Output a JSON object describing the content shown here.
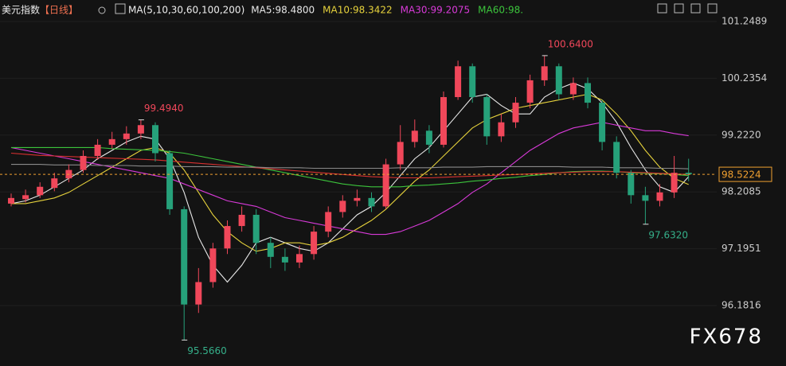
{
  "chart_data": {
    "type": "candlestick",
    "title": "美元指数",
    "period": "【日线】",
    "indicator": "MA(5,10,30,60,100,200)",
    "watermark": "FX678",
    "up_color": "#f0475a",
    "down_color": "#26a17a",
    "open": [
      98.0,
      98.08,
      98.15,
      98.28,
      98.45,
      98.6,
      98.85,
      99.05,
      99.15,
      99.25,
      99.4,
      98.9,
      97.9,
      96.2,
      96.6,
      97.2,
      97.6,
      97.8,
      97.3,
      97.05,
      96.95,
      97.1,
      97.5,
      97.85,
      98.05,
      98.1,
      97.95,
      98.7,
      99.1,
      99.3,
      99.05,
      99.9,
      100.45,
      99.9,
      99.2,
      99.45,
      99.8,
      100.2,
      100.45,
      99.95,
      100.15,
      99.8,
      99.1,
      98.55,
      98.15,
      98.05,
      98.2,
      98.55
    ],
    "high": [
      98.18,
      98.25,
      98.38,
      98.55,
      98.7,
      98.95,
      99.15,
      99.28,
      99.38,
      99.494,
      99.45,
      98.95,
      97.95,
      96.85,
      97.3,
      97.7,
      97.95,
      97.9,
      97.4,
      97.2,
      97.25,
      97.6,
      97.95,
      98.15,
      98.25,
      98.2,
      98.8,
      99.4,
      99.5,
      99.4,
      100.0,
      100.55,
      100.5,
      99.95,
      99.6,
      99.9,
      100.3,
      100.64,
      100.5,
      100.25,
      100.25,
      99.85,
      99.2,
      98.6,
      98.3,
      98.35,
      98.85,
      98.8
    ],
    "low": [
      97.95,
      98.02,
      98.1,
      98.22,
      98.38,
      98.55,
      98.78,
      98.98,
      99.05,
      99.15,
      98.75,
      97.8,
      95.566,
      96.05,
      96.5,
      97.1,
      97.5,
      97.1,
      96.85,
      96.8,
      96.85,
      97.0,
      97.4,
      97.75,
      97.95,
      97.85,
      97.9,
      98.6,
      99.0,
      98.9,
      99.0,
      99.85,
      99.8,
      99.05,
      99.1,
      99.35,
      99.7,
      100.1,
      99.85,
      99.85,
      99.7,
      98.95,
      98.45,
      98.0,
      97.632,
      97.95,
      98.1,
      98.4
    ],
    "close": [
      98.1,
      98.15,
      98.3,
      98.45,
      98.6,
      98.85,
      99.05,
      99.15,
      99.25,
      99.4,
      98.9,
      97.9,
      96.2,
      96.6,
      97.2,
      97.6,
      97.8,
      97.3,
      97.05,
      96.95,
      97.1,
      97.5,
      97.85,
      98.05,
      98.1,
      97.95,
      98.7,
      99.1,
      99.3,
      99.05,
      99.9,
      100.45,
      99.9,
      99.2,
      99.45,
      99.8,
      100.2,
      100.45,
      99.95,
      100.15,
      99.8,
      99.1,
      98.55,
      98.15,
      98.05,
      98.2,
      98.55,
      98.5224
    ],
    "series": [
      {
        "name": "MA5:98.4800",
        "color": "#e8e8e8",
        "values": [
          98.0,
          98.05,
          98.15,
          98.3,
          98.45,
          98.6,
          98.8,
          98.95,
          99.1,
          99.2,
          99.15,
          98.8,
          98.2,
          97.4,
          96.9,
          96.6,
          96.9,
          97.3,
          97.4,
          97.3,
          97.2,
          97.15,
          97.3,
          97.55,
          97.8,
          97.95,
          98.2,
          98.5,
          98.8,
          99.0,
          99.3,
          99.6,
          99.9,
          99.95,
          99.75,
          99.6,
          99.6,
          99.9,
          100.05,
          100.15,
          100.05,
          99.8,
          99.45,
          99.0,
          98.6,
          98.3,
          98.2,
          98.48
        ]
      },
      {
        "name": "MA10:98.3422",
        "color": "#e6d23c",
        "values": [
          98.0,
          98.0,
          98.05,
          98.1,
          98.2,
          98.35,
          98.5,
          98.65,
          98.8,
          98.95,
          99.0,
          98.9,
          98.6,
          98.2,
          97.8,
          97.5,
          97.3,
          97.15,
          97.2,
          97.3,
          97.3,
          97.25,
          97.3,
          97.4,
          97.55,
          97.7,
          97.9,
          98.15,
          98.4,
          98.6,
          98.85,
          99.1,
          99.35,
          99.5,
          99.6,
          99.7,
          99.75,
          99.8,
          99.85,
          99.9,
          99.95,
          99.85,
          99.6,
          99.3,
          98.95,
          98.65,
          98.45,
          98.34
        ]
      },
      {
        "name": "MA30:99.2075",
        "color": "#d83ad8",
        "values": [
          99.0,
          98.95,
          98.9,
          98.85,
          98.8,
          98.75,
          98.7,
          98.65,
          98.6,
          98.55,
          98.5,
          98.45,
          98.35,
          98.25,
          98.15,
          98.05,
          98.0,
          97.95,
          97.85,
          97.75,
          97.7,
          97.65,
          97.6,
          97.55,
          97.5,
          97.45,
          97.45,
          97.5,
          97.6,
          97.7,
          97.85,
          98.0,
          98.2,
          98.35,
          98.55,
          98.75,
          98.95,
          99.1,
          99.25,
          99.35,
          99.4,
          99.45,
          99.4,
          99.35,
          99.3,
          99.3,
          99.25,
          99.21
        ]
      },
      {
        "name": "MA60:98.",
        "color": "#3cc43c",
        "values": [
          99.0,
          99.0,
          99.0,
          99.0,
          99.0,
          99.0,
          99.0,
          98.98,
          98.97,
          98.96,
          98.95,
          98.93,
          98.9,
          98.85,
          98.8,
          98.75,
          98.7,
          98.65,
          98.6,
          98.55,
          98.5,
          98.45,
          98.4,
          98.35,
          98.32,
          98.3,
          98.3,
          98.3,
          98.32,
          98.33,
          98.35,
          98.37,
          98.4,
          98.42,
          98.45,
          98.47,
          98.5,
          98.52,
          98.55,
          98.57,
          98.58,
          98.58,
          98.57,
          98.55,
          98.54,
          98.53,
          98.52,
          98.5
        ]
      },
      {
        "color": "#d83030",
        "values": [
          98.9,
          98.88,
          98.86,
          98.85,
          98.84,
          98.83,
          98.82,
          98.81,
          98.8,
          98.79,
          98.78,
          98.76,
          98.74,
          98.72,
          98.7,
          98.68,
          98.66,
          98.64,
          98.62,
          98.6,
          98.58,
          98.56,
          98.54,
          98.52,
          98.5,
          98.48,
          98.47,
          98.46,
          98.46,
          98.46,
          98.47,
          98.48,
          98.49,
          98.5,
          98.51,
          98.52,
          98.53,
          98.54,
          98.55,
          98.56,
          98.57,
          98.57,
          98.57,
          98.56,
          98.55,
          98.54,
          98.53,
          98.52
        ]
      },
      {
        "color": "#8a8a8a",
        "values": [
          98.7,
          98.7,
          98.7,
          98.69,
          98.69,
          98.69,
          98.68,
          98.68,
          98.68,
          98.67,
          98.67,
          98.67,
          98.66,
          98.66,
          98.66,
          98.65,
          98.65,
          98.65,
          98.64,
          98.64,
          98.64,
          98.63,
          98.63,
          98.63,
          98.63,
          98.63,
          98.63,
          98.64,
          98.64,
          98.64,
          98.65,
          98.65,
          98.65,
          98.66,
          98.66,
          98.66,
          98.66,
          98.66,
          98.66,
          98.65,
          98.65,
          98.65,
          98.64,
          98.64,
          98.64,
          98.63,
          98.63,
          98.62
        ]
      }
    ],
    "ylim": [
      95.103,
      101.632
    ],
    "yticks": [
      101.2489,
      100.2354,
      {
        "value": 99.222,
        "label": "99.2220"
      },
      98.2085,
      97.1951,
      96.1816
    ],
    "last_price": 98.5224,
    "last_price_color": "#f0a030",
    "annotations": [
      {
        "value": 100.64,
        "label": "100.6400",
        "color": "#f0475a"
      },
      {
        "value": 99.494,
        "label": "99.4940",
        "color": "#f0475a"
      },
      {
        "value": 95.566,
        "label": "95.5660",
        "color": "#35b08a"
      },
      {
        "value": 97.632,
        "label": "97.6320",
        "color": "#35b08a"
      }
    ]
  }
}
